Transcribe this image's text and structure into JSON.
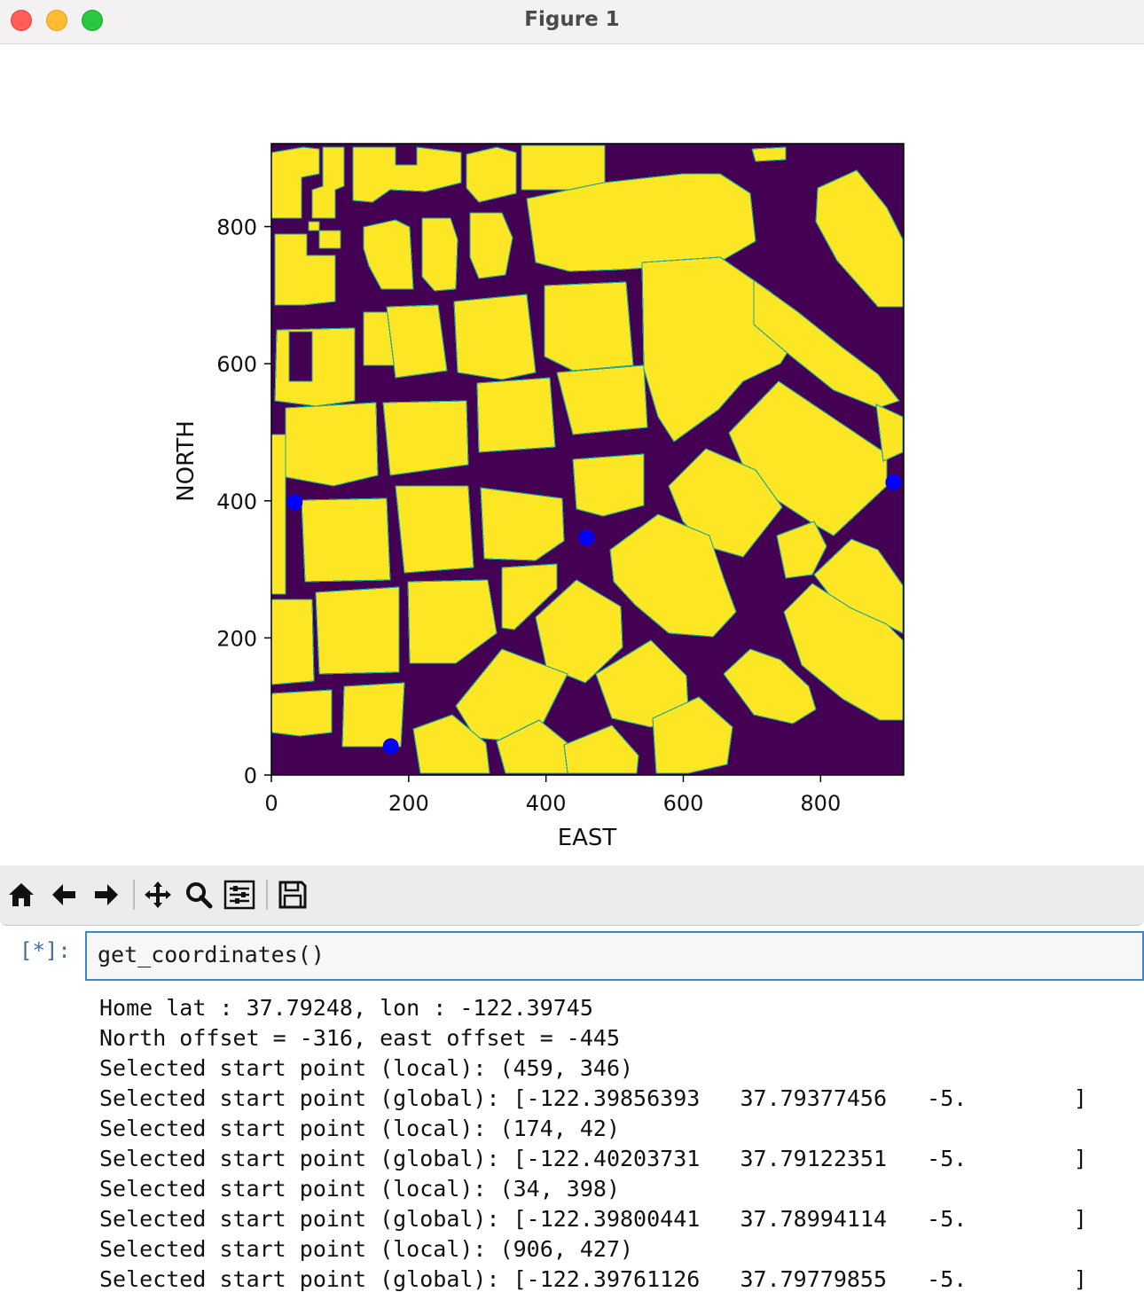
{
  "window": {
    "title": "Figure 1"
  },
  "chart_data": {
    "type": "scatter",
    "title": "",
    "xlabel": "EAST",
    "ylabel": "NORTH",
    "xlim": [
      0,
      921
    ],
    "ylim": [
      0,
      921
    ],
    "xticks": [
      0,
      200,
      400,
      600,
      800
    ],
    "yticks": [
      0,
      200,
      400,
      600,
      800
    ],
    "background": "grid map (obstacles yellow #fde725, free space purple #440154)",
    "points": [
      {
        "x": 459,
        "y": 346
      },
      {
        "x": 174,
        "y": 42
      },
      {
        "x": 34,
        "y": 398
      },
      {
        "x": 906,
        "y": 427
      }
    ],
    "point_color": "#0000ff",
    "colors": {
      "obstacle": "#fde725",
      "free": "#440154",
      "edge": "#26a591"
    }
  },
  "toolbar": {
    "buttons": [
      "home-icon",
      "back-icon",
      "forward-icon",
      "pan-icon",
      "zoom-icon",
      "configure-subplots-icon",
      "save-icon"
    ]
  },
  "notebook": {
    "prompt": "[*]:",
    "code": "get_coordinates()",
    "output": [
      "Home lat : 37.79248, lon : -122.39745",
      "North offset = -316, east offset = -445",
      "Selected start point (local): (459, 346)",
      "Selected start point (global): [-122.39856393   37.79377456   -5.        ]",
      "Selected start point (local): (174, 42)",
      "Selected start point (global): [-122.40203731   37.79122351   -5.        ]",
      "Selected start point (local): (34, 398)",
      "Selected start point (global): [-122.39800441   37.78994114   -5.        ]",
      "Selected start point (local): (906, 427)",
      "Selected start point (global): [-122.39761126   37.79779855   -5.        ]"
    ]
  }
}
